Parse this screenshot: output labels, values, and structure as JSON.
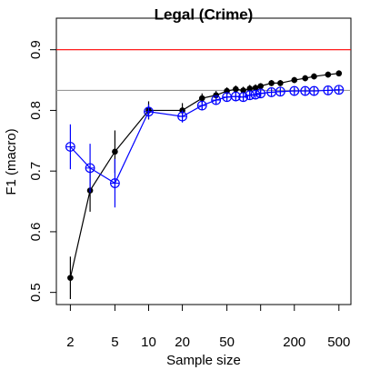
{
  "chart_data": {
    "type": "line",
    "title": "Legal (Crime)",
    "x_label": "Sample size",
    "y_label": "F1 (macro)",
    "x_scale": "log",
    "x": [
      2,
      3,
      5,
      10,
      20,
      30,
      40,
      50,
      60,
      70,
      80,
      90,
      100,
      125,
      150,
      200,
      250,
      300,
      400,
      500
    ],
    "series": [
      {
        "color": "#000000",
        "marker": "filled-circle",
        "values": [
          0.524,
          0.668,
          0.732,
          0.8,
          0.8,
          0.82,
          0.825,
          0.832,
          0.835,
          0.833,
          0.836,
          0.837,
          0.84,
          0.845,
          0.845,
          0.85,
          0.853,
          0.856,
          0.859,
          0.861
        ],
        "errors": [
          0.035,
          0.035,
          0.035,
          0.015,
          0.012,
          0.008,
          0.007,
          0.006,
          0.006,
          0.006,
          0.006,
          0.006,
          0.005,
          0.005,
          0.005,
          0.005,
          0.005,
          0.005,
          0.005,
          0.005
        ]
      },
      {
        "color": "#0000ff",
        "marker": "circle-plus",
        "values": [
          0.74,
          0.705,
          0.68,
          0.798,
          0.79,
          0.808,
          0.817,
          0.822,
          0.823,
          0.822,
          0.825,
          0.826,
          0.828,
          0.83,
          0.831,
          0.832,
          0.832,
          0.832,
          0.833,
          0.834
        ],
        "errors": [
          0.037,
          0.04,
          0.04,
          0.012,
          0.01,
          0.007,
          0.006,
          0.006,
          0.006,
          0.006,
          0.006,
          0.005,
          0.005,
          0.005,
          0.005,
          0.005,
          0.005,
          0.005,
          0.005,
          0.005
        ]
      }
    ],
    "reference_lines": [
      {
        "value": 0.9,
        "color": "#ff0000"
      },
      {
        "value": 0.833,
        "color": "#999999"
      }
    ],
    "xlim": [
      1.5,
      640
    ],
    "ylim": [
      0.48,
      0.952
    ],
    "xticks": [
      2,
      5,
      10,
      20,
      50,
      {
        "value": 100,
        "label": null
      },
      200,
      500
    ],
    "yticks": [
      0.5,
      0.6,
      0.7,
      0.8,
      0.9
    ]
  }
}
